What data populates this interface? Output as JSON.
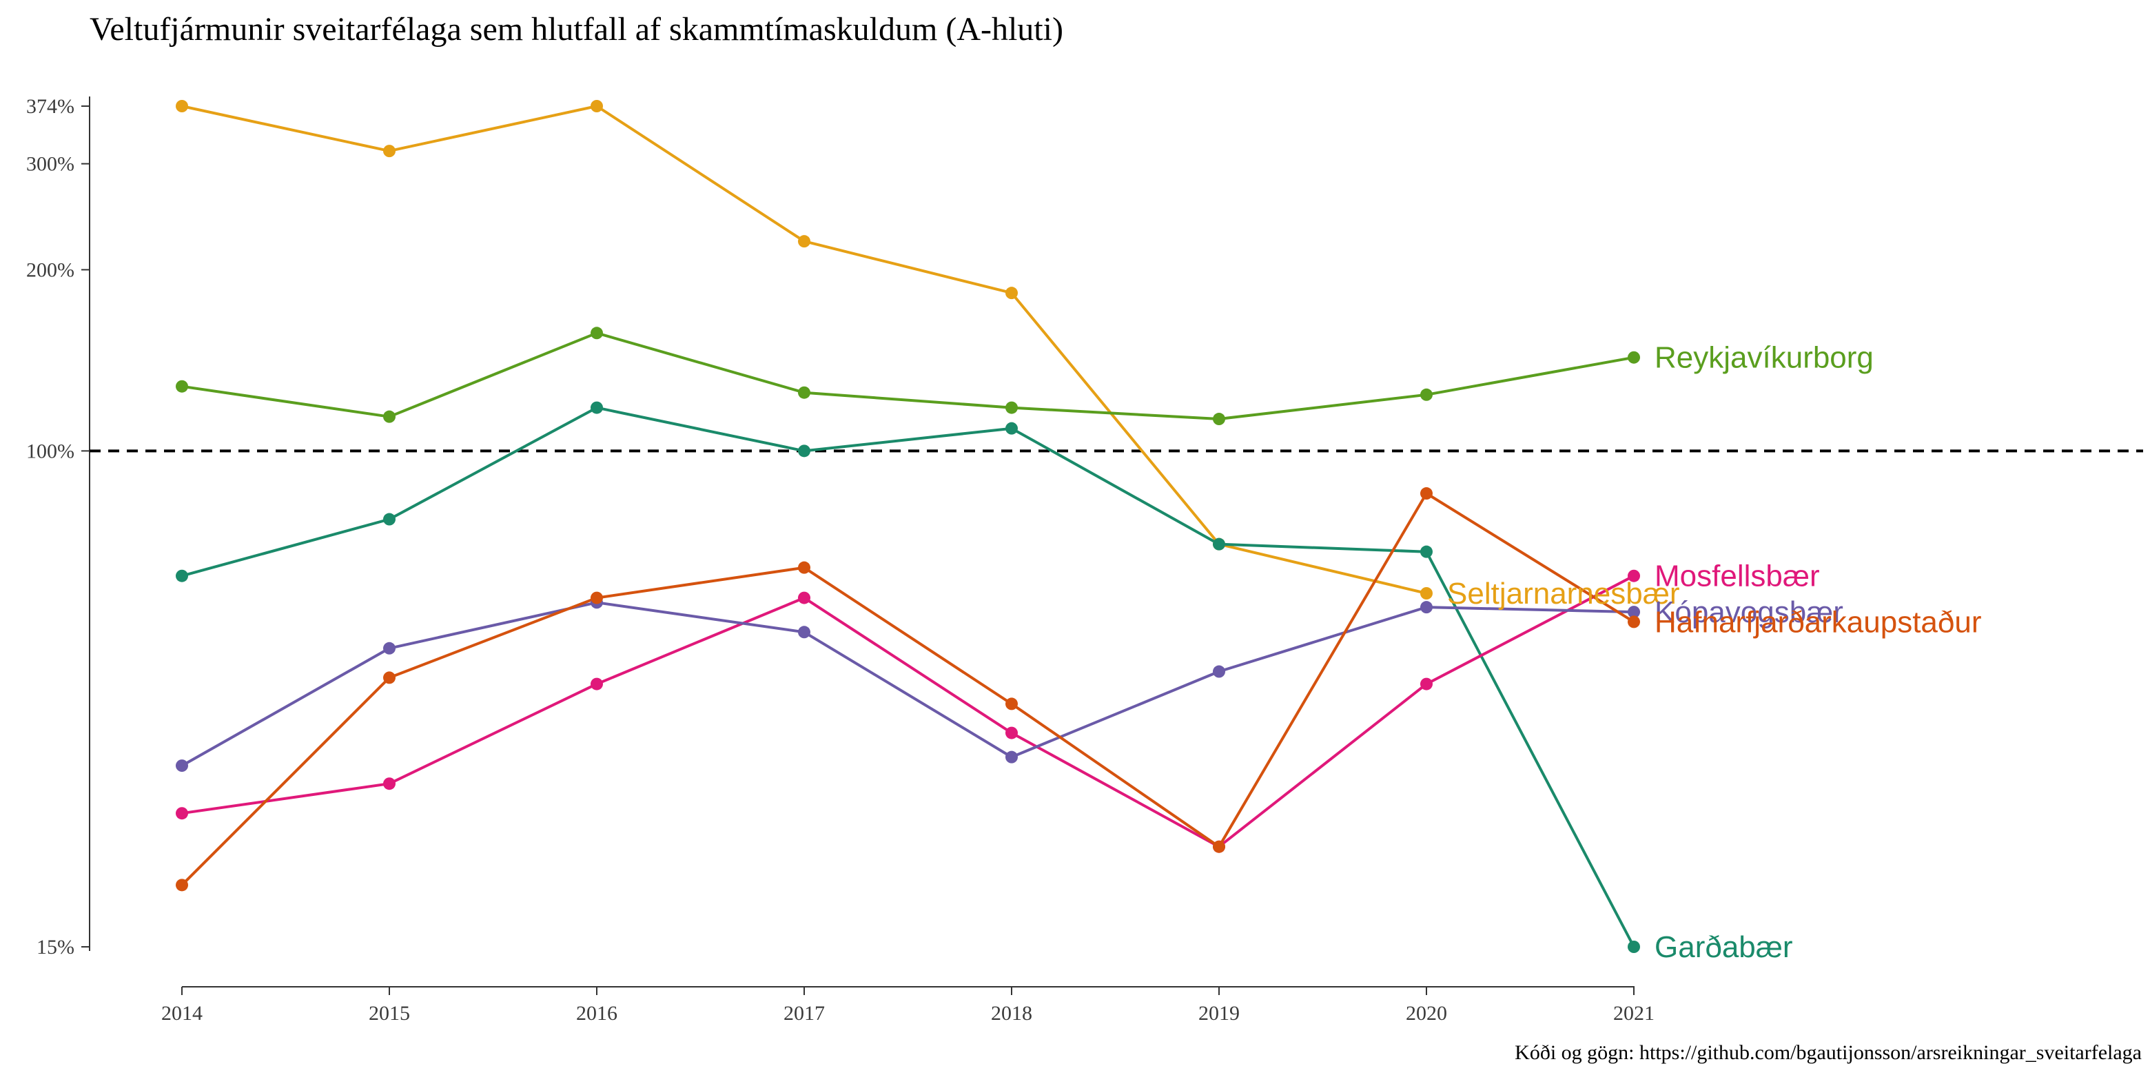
{
  "chart_data": {
    "type": "line",
    "title": "Veltufjármunir sveitarfélaga sem hlutfall af skammtímaskuldum (A-hluti)",
    "caption": "Kóði og gögn: https://github.com/bgautijonsson/arsreikningar_sveitarfelaga",
    "xlabel": "",
    "ylabel": "",
    "x": [
      "2014",
      "2015",
      "2016",
      "2017",
      "2018",
      "2019",
      "2020",
      "2021"
    ],
    "y_scale": "log",
    "ylim": [
      15,
      374
    ],
    "y_ticks": [
      {
        "value": 374,
        "label": "374%"
      },
      {
        "value": 300,
        "label": "300%"
      },
      {
        "value": 200,
        "label": "200%"
      },
      {
        "value": 100,
        "label": "100%"
      },
      {
        "value": 15,
        "label": "15%"
      }
    ],
    "reference_line": {
      "value": 100,
      "style": "dashed"
    },
    "legend": "direct labels at right end of lines",
    "grid": false,
    "series": [
      {
        "name": "Seltjarnarnesbær",
        "color": "#E6A015",
        "values": [
          374,
          315,
          374,
          223,
          183,
          70,
          58,
          null
        ]
      },
      {
        "name": "Reykjavíkurborg",
        "color": "#5A9E1E",
        "values": [
          128,
          114,
          157,
          125,
          118,
          113,
          124,
          143
        ]
      },
      {
        "name": "Garðabær",
        "color": "#1A8A6A",
        "values": [
          62,
          77,
          118,
          100,
          109,
          70,
          68,
          15
        ]
      },
      {
        "name": "Mosfellsbær",
        "color": "#E0187A",
        "values": [
          25,
          28,
          41,
          57,
          34,
          22,
          41,
          62
        ]
      },
      {
        "name": "Kópavogsbær",
        "color": "#6A5AA8",
        "values": [
          30,
          47,
          56,
          50,
          31,
          43,
          55,
          54
        ]
      },
      {
        "name": "Hafnarfjarðarkaupstaður",
        "color": "#D5520E",
        "values": [
          19,
          42,
          57,
          64,
          38,
          22,
          85,
          52
        ]
      }
    ]
  }
}
